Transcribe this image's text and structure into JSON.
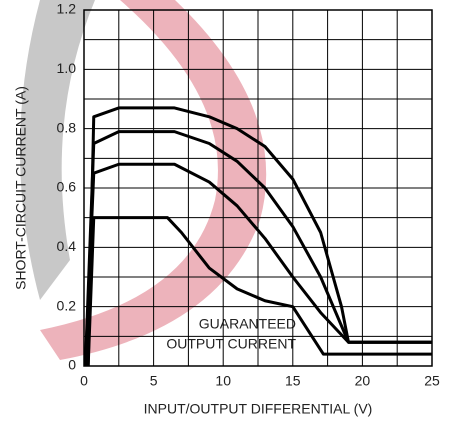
{
  "chart_data": {
    "type": "line",
    "xlabel": "INPUT/OUTPUT DIFFERENTIAL (V)",
    "ylabel": "SHORT-CIRCUIT CURRENT (A)",
    "annotations": [
      "GUARANTEED",
      "OUTPUT CURRENT"
    ],
    "xlim": [
      0,
      25
    ],
    "ylim": [
      0,
      1.2
    ],
    "xticks": [
      0,
      5,
      10,
      15,
      20,
      25
    ],
    "yticks": [
      0,
      0.2,
      0.4,
      0.6,
      {
        "value": 0.8,
        "label": "0.8"
      },
      {
        "value": 1.0,
        "label": "1.0"
      },
      {
        "value": 1.2,
        "label": "1.2"
      }
    ],
    "xminor": [
      2.5,
      7.5,
      12.5,
      17.5,
      22.5
    ],
    "yminor": [
      0.1,
      0.3,
      0.5,
      0.7,
      0.9,
      1.1
    ],
    "grid": true,
    "series": [
      {
        "color": "#000000",
        "x": [
          0.3,
          0.7,
          6,
          7,
          9,
          11,
          13,
          15,
          17.2,
          25
        ],
        "values": [
          0,
          0.5,
          0.5,
          0.45,
          0.33,
          0.26,
          0.22,
          0.2,
          0.04,
          0.04
        ]
      },
      {
        "color": "#000000",
        "x": [
          0.1,
          0.7,
          2.5,
          6.5,
          9,
          11,
          13,
          15,
          17,
          19,
          25
        ],
        "values": [
          0,
          0.65,
          0.68,
          0.68,
          0.62,
          0.54,
          0.43,
          0.3,
          0.18,
          0.08,
          0.08
        ]
      },
      {
        "color": "#000000",
        "x": [
          0.1,
          0.7,
          2.5,
          6.5,
          9,
          11,
          13,
          15,
          17,
          19,
          25
        ],
        "values": [
          0,
          0.75,
          0.79,
          0.79,
          0.75,
          0.69,
          0.6,
          0.47,
          0.3,
          0.08,
          0.08
        ]
      },
      {
        "color": "#000000",
        "x": [
          0.3,
          0.7,
          2.5,
          6.5,
          9,
          11,
          13,
          15,
          17,
          18.5,
          19,
          25
        ],
        "values": [
          0,
          0.84,
          0.87,
          0.87,
          0.84,
          0.8,
          0.74,
          0.63,
          0.45,
          0.2,
          0.08,
          0.08
        ]
      }
    ]
  }
}
